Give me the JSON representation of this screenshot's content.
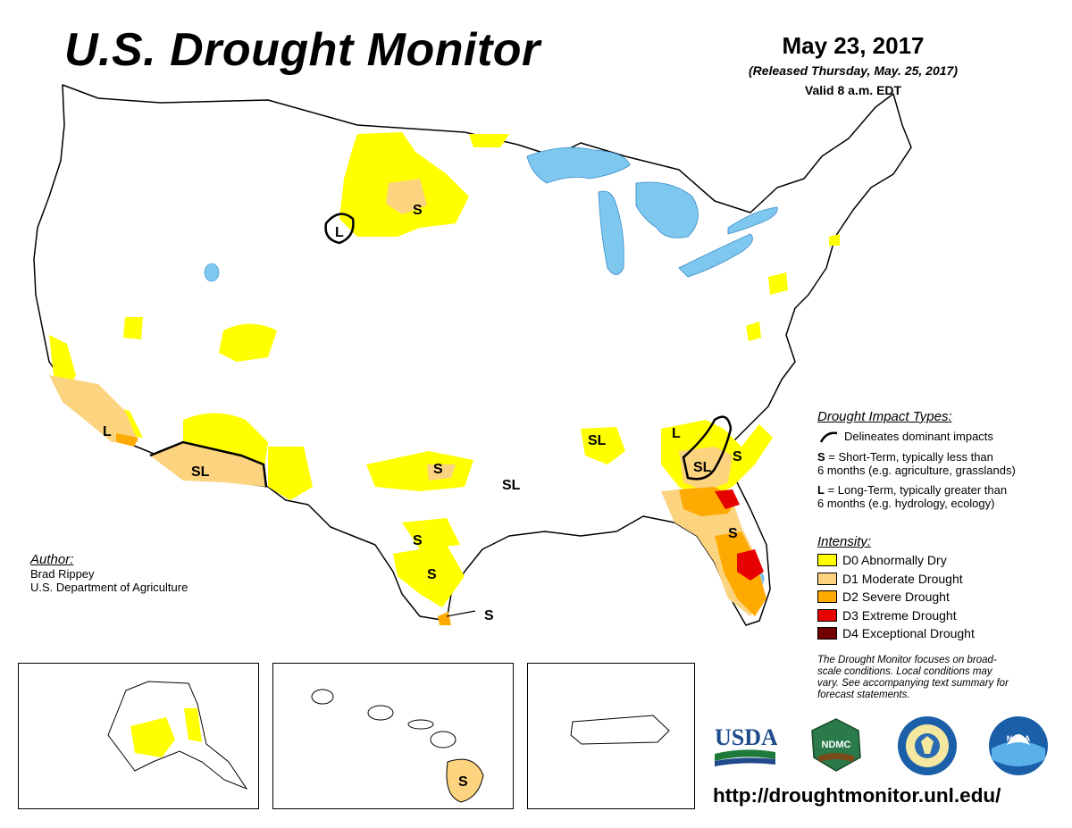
{
  "header": {
    "title": "U.S. Drought Monitor",
    "date": "May 23, 2017",
    "released": "(Released Thursday, May. 25, 2017)",
    "valid": "Valid 8 a.m. EDT"
  },
  "legend": {
    "impact_header": "Drought Impact Types:",
    "delineates": "Delineates dominant impacts",
    "types": [
      {
        "symbol": "S",
        "text_1": " = Short-Term, typically less than",
        "text_2": "6 months (e.g. agriculture, grasslands)"
      },
      {
        "symbol": "L",
        "text_1": " = Long-Term, typically greater than",
        "text_2": "6 months (e.g. hydrology, ecology)"
      }
    ],
    "intensity_header": "Intensity:",
    "intensity": [
      {
        "label": "D0 Abnormally Dry",
        "color": "#FFFF00"
      },
      {
        "label": "D1 Moderate Drought",
        "color": "#FCD37F"
      },
      {
        "label": "D2 Severe Drought",
        "color": "#FFAA00"
      },
      {
        "label": "D3 Extreme Drought",
        "color": "#E60000"
      },
      {
        "label": "D4 Exceptional Drought",
        "color": "#730000"
      }
    ]
  },
  "note": {
    "line1": "The Drought Monitor focuses on broad-",
    "line2": "scale conditions. Local conditions may",
    "line3": "vary. See accompanying text summary for",
    "line4": "forecast statements."
  },
  "author": {
    "header": "Author:",
    "name": "Brad Rippey",
    "org": "U.S. Department of Agriculture"
  },
  "map_labels": {
    "s": "S",
    "l": "L",
    "sl": "SL"
  },
  "logos": {
    "usda": "USDA",
    "ndmc": "NDMC",
    "noaa": "NOAA"
  },
  "url": "http://droughtmonitor.unl.edu/",
  "colors": {
    "d0": "#FFFF00",
    "d1": "#FCD37F",
    "d2": "#FFAA00",
    "d3": "#E60000",
    "d4": "#730000",
    "water": "#7EC8F0"
  }
}
